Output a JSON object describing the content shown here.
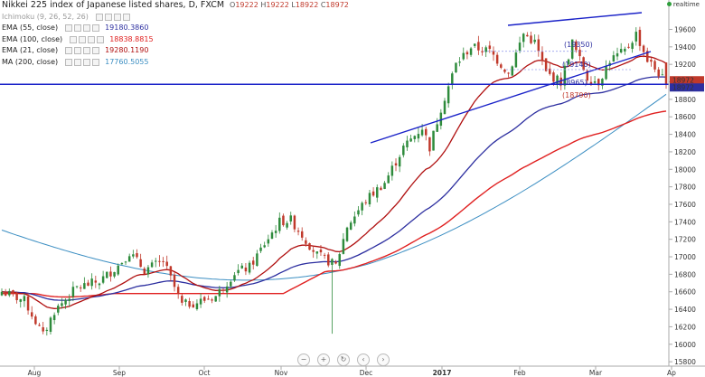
{
  "header": {
    "title": "Nikkei 225 index of Japanese listed shares, D, FXCM",
    "ohlc": {
      "o_label": "O",
      "o": "19222",
      "h_label": "H",
      "h": "19222",
      "l_label": "L",
      "l": "18922",
      "c_label": "C",
      "c": "18972"
    },
    "realtime_label": "realtime"
  },
  "legend": [
    {
      "label": "Ichimoku (9, 26, 52, 26)",
      "value": "",
      "color": "#999999"
    },
    {
      "label": "EMA (55, close)",
      "value": "19180.3860",
      "color": "#2d2fa0"
    },
    {
      "label": "EMA (100, close)",
      "value": "18838.8815",
      "color": "#e02020"
    },
    {
      "label": "EMA (21, close)",
      "value": "19280.1190",
      "color": "#b01010"
    },
    {
      "label": "MA (200, close)",
      "value": "17760.5055",
      "color": "#3b8ec2"
    }
  ],
  "chart_data": {
    "type": "candlestick",
    "x_tick_labels": [
      "Aug",
      "Sep",
      "Oct",
      "Nov",
      "Dec",
      "2017",
      "Feb",
      "Mar",
      "Ap"
    ],
    "y_tick_labels": [
      "15800",
      "16000",
      "16200",
      "16400",
      "16600",
      "16800",
      "17000",
      "17200",
      "17400",
      "17600",
      "17800",
      "18000",
      "18200",
      "18400",
      "18600",
      "18800",
      "19000",
      "19200",
      "19400",
      "19600"
    ],
    "ylim": [
      15760,
      19760
    ],
    "price_labels": [
      {
        "text": "18972",
        "color": "#c0392b"
      },
      {
        "text": "18972",
        "color": "#2d2fa0"
      }
    ],
    "annotations": [
      {
        "text": "(19350)",
        "color": "#2d2fa0"
      },
      {
        "text": "(19140)",
        "color": "#2d2fa0"
      },
      {
        "text": "(18965)",
        "color": "#2d2fa0"
      },
      {
        "text": "(18790)",
        "color": "#c0392b"
      }
    ],
    "horizontal_line": {
      "value": 18972,
      "color": "#1a22c8"
    },
    "series_colors": {
      "ema55": "#2d2fa0",
      "ema100": "#e02020",
      "ema21": "#b01010",
      "ma200": "#3b8ec2",
      "up": "#2e8b3c",
      "down": "#c0392b"
    }
  }
}
